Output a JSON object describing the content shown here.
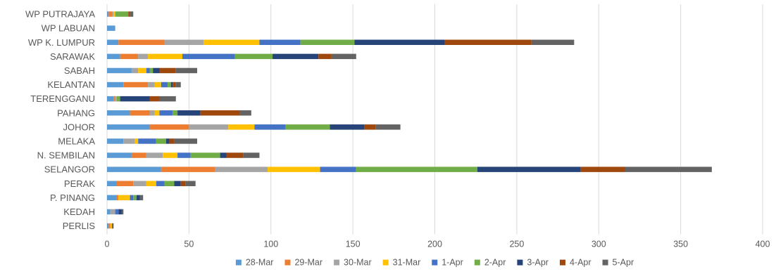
{
  "chart_data": {
    "type": "bar",
    "orientation": "horizontal",
    "stacked": true,
    "title": "",
    "xlabel": "",
    "ylabel": "",
    "xlim": [
      0,
      400
    ],
    "x_ticks": [
      "0",
      "50",
      "100",
      "150",
      "200",
      "250",
      "300",
      "350",
      "400"
    ],
    "grid": "vertical",
    "legend_position": "bottom",
    "categories": [
      "WP PUTRAJAYA",
      "WP LABUAN",
      "WP K. LUMPUR",
      "SARAWAK",
      "SABAH",
      "KELANTAN",
      "TERENGGANU",
      "PAHANG",
      "JOHOR",
      "MELAKA",
      "N. SEMBILAN",
      "SELANGOR",
      "PERAK",
      "P. PINANG",
      "KEDAH",
      "PERLIS"
    ],
    "series": [
      {
        "name": "28-Mar",
        "color": "#5b9bd5",
        "values": [
          1,
          5,
          7,
          8,
          15,
          10,
          4,
          14,
          26,
          10,
          15,
          33,
          6,
          6,
          2,
          1
        ]
      },
      {
        "name": "29-Mar",
        "color": "#ed7d31",
        "values": [
          2,
          0,
          28,
          11,
          0,
          15,
          1,
          12,
          24,
          0,
          9,
          33,
          10,
          1,
          0,
          1
        ]
      },
      {
        "name": "30-Mar",
        "color": "#a5a5a5",
        "values": [
          1,
          0,
          24,
          6,
          4,
          4,
          1,
          3,
          24,
          7,
          10,
          32,
          8,
          0,
          3,
          0
        ]
      },
      {
        "name": "31-Mar",
        "color": "#ffc000",
        "values": [
          1,
          0,
          34,
          21,
          5,
          4,
          0,
          3,
          16,
          2,
          9,
          32,
          6,
          7,
          0,
          1
        ]
      },
      {
        "name": "1-Apr",
        "color": "#4472c4",
        "values": [
          0,
          0,
          25,
          32,
          2,
          4,
          0,
          8,
          19,
          11,
          8,
          22,
          5,
          2,
          2,
          0
        ]
      },
      {
        "name": "2-Apr",
        "color": "#70ad47",
        "values": [
          8,
          0,
          33,
          23,
          2,
          2,
          2,
          3,
          27,
          6,
          18,
          74,
          6,
          2,
          0,
          0
        ]
      },
      {
        "name": "3-Apr",
        "color": "#264478",
        "values": [
          0,
          0,
          55,
          28,
          4,
          1,
          18,
          14,
          21,
          2,
          4,
          63,
          4,
          2,
          2,
          0
        ]
      },
      {
        "name": "4-Apr",
        "color": "#9e480e",
        "values": [
          1,
          0,
          53,
          8,
          10,
          2,
          6,
          24,
          7,
          3,
          10,
          27,
          3,
          0,
          0,
          0
        ]
      },
      {
        "name": "5-Apr",
        "color": "#636363",
        "values": [
          2,
          0,
          26,
          15,
          13,
          3,
          10,
          7,
          15,
          14,
          10,
          53,
          6,
          2,
          1,
          1
        ]
      }
    ]
  }
}
